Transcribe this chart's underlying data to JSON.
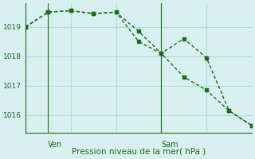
{
  "title": "Pression niveau de la mer( hPa )",
  "background_color": "#d9f0f0",
  "grid_color": "#b0d8d8",
  "line_color": "#1a6b1a",
  "xlim": [
    0,
    10
  ],
  "ylim": [
    1015.4,
    1019.8
  ],
  "yticks": [
    1016,
    1017,
    1018,
    1019
  ],
  "line1_x": [
    0,
    1,
    2,
    3,
    4,
    5,
    6,
    7,
    8,
    9,
    10
  ],
  "line1_y": [
    1019.0,
    1019.5,
    1019.55,
    1019.45,
    1019.5,
    1018.85,
    1018.1,
    1018.6,
    1017.95,
    1016.15,
    1015.65
  ],
  "line2_x": [
    0,
    1,
    2,
    3,
    4,
    5,
    6,
    7,
    8,
    9,
    10
  ],
  "line2_y": [
    1019.0,
    1019.5,
    1019.55,
    1019.45,
    1019.5,
    1018.5,
    1018.1,
    1017.3,
    1016.85,
    1016.15,
    1015.65
  ],
  "ven_x": 1.0,
  "sam_x": 6.0,
  "day_label_color": "#1a6b1a",
  "marker_size": 3.5,
  "linewidth": 1.0
}
